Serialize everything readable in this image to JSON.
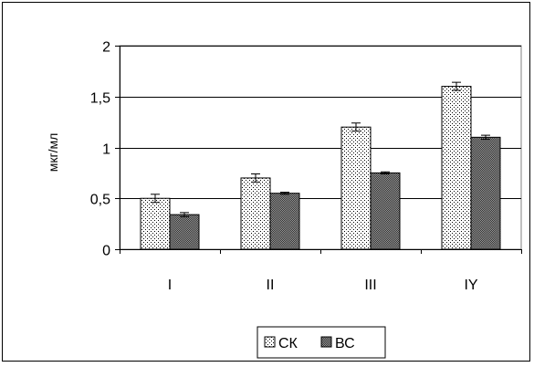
{
  "chart_data": {
    "type": "bar",
    "title": "",
    "xlabel": "",
    "ylabel": "мкг/мл",
    "ylim": [
      0,
      2
    ],
    "yticks": [
      0,
      0.5,
      1,
      1.5,
      2
    ],
    "ytick_labels": [
      "0",
      "0,5",
      "1",
      "1,5",
      "2"
    ],
    "categories": [
      "I",
      "II",
      "III",
      "IY"
    ],
    "series": [
      {
        "name": "СК",
        "values": [
          0.5,
          0.7,
          1.2,
          1.6
        ],
        "errors": [
          0.04,
          0.04,
          0.04,
          0.04
        ],
        "fill": "dots"
      },
      {
        "name": "ВС",
        "values": [
          0.34,
          0.55,
          0.75,
          1.1
        ],
        "errors": [
          0.02,
          0.01,
          0.01,
          0.02
        ],
        "fill": "dense-hatch"
      }
    ],
    "grid": "horizontal",
    "legend": "bottom",
    "colors": {
      "plot_border": "#808080",
      "grid": "#000000",
      "bar_outline": "#000000"
    }
  }
}
